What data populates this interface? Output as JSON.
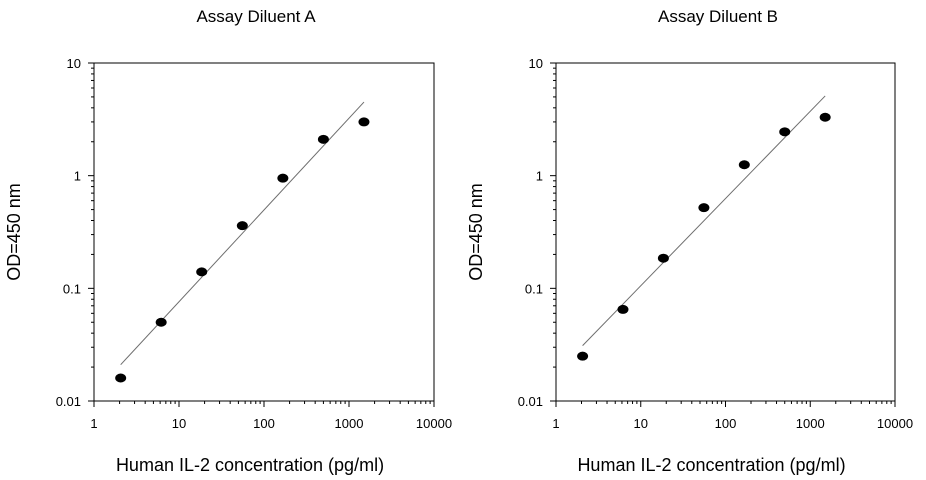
{
  "chart_data": [
    {
      "type": "scatter",
      "title": "Assay Diluent A",
      "xlabel": "Human IL-2 concentration (pg/ml)",
      "ylabel": "OD=450 nm",
      "xscale": "log",
      "yscale": "log",
      "xlim": [
        1,
        10000
      ],
      "ylim": [
        0.01,
        10
      ],
      "x_tick_labels": [
        "1",
        "10",
        "100",
        "1000",
        "10000"
      ],
      "y_tick_labels": [
        "0.01",
        "0.1",
        "1",
        "10"
      ],
      "grid": false,
      "series": [
        {
          "x": [
            2.06,
            6.17,
            18.5,
            55.6,
            166.7,
            500,
            1500
          ],
          "y": [
            0.016,
            0.05,
            0.14,
            0.36,
            0.95,
            2.1,
            3.0
          ]
        }
      ],
      "fit_line": {
        "x": [
          2.06,
          1500
        ],
        "y": [
          0.021,
          4.5
        ]
      }
    },
    {
      "type": "scatter",
      "title": "Assay Diluent B",
      "xlabel": "Human IL-2 concentration (pg/ml)",
      "ylabel": "OD=450 nm",
      "xscale": "log",
      "yscale": "log",
      "xlim": [
        1,
        10000
      ],
      "ylim": [
        0.01,
        10
      ],
      "x_tick_labels": [
        "1",
        "10",
        "100",
        "1000",
        "10000"
      ],
      "y_tick_labels": [
        "0.01",
        "0.1",
        "1",
        "10"
      ],
      "grid": false,
      "series": [
        {
          "x": [
            2.06,
            6.17,
            18.5,
            55.6,
            166.7,
            500,
            1500
          ],
          "y": [
            0.025,
            0.065,
            0.185,
            0.52,
            1.25,
            2.45,
            3.3
          ]
        }
      ],
      "fit_line": {
        "x": [
          2.06,
          1500
        ],
        "y": [
          0.031,
          5.1
        ]
      }
    }
  ]
}
